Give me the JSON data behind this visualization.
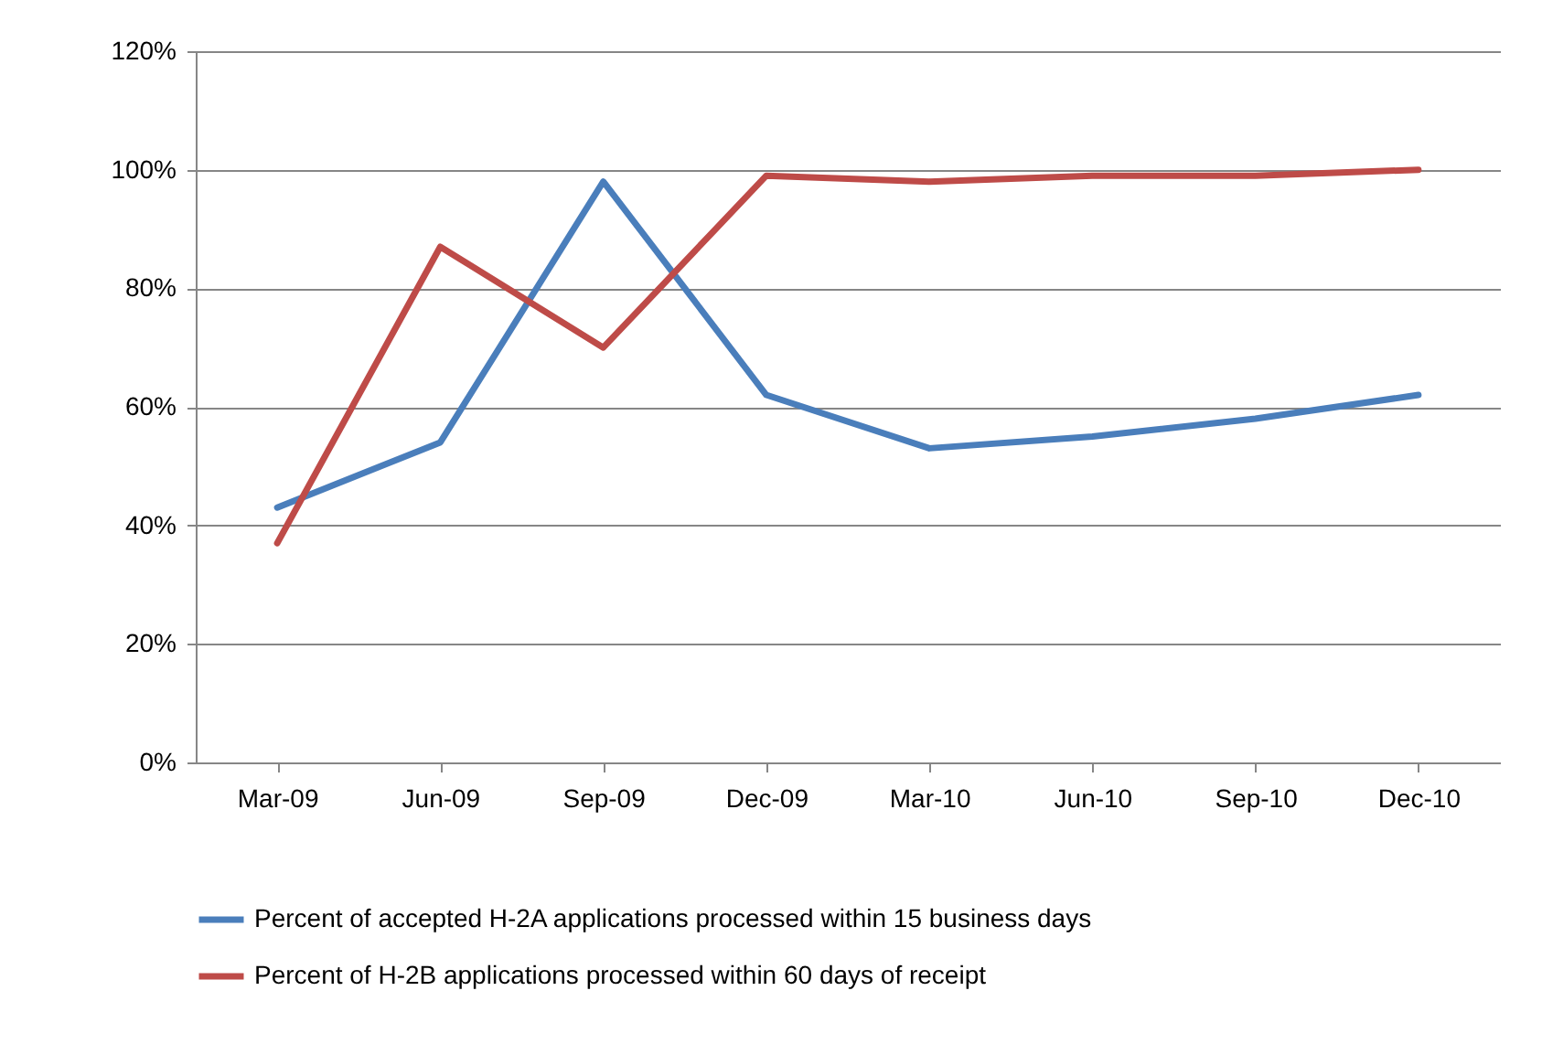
{
  "chart_data": {
    "type": "line",
    "categories": [
      "Mar-09",
      "Jun-09",
      "Sep-09",
      "Dec-09",
      "Mar-10",
      "Jun-10",
      "Sep-10",
      "Dec-10"
    ],
    "series": [
      {
        "name": "Percent of  accepted  H-2A applications  processed within 15 business days",
        "color": "#4a7ebb",
        "values": [
          43,
          54,
          98,
          62,
          53,
          55,
          58,
          62
        ]
      },
      {
        "name": "Percent of H-2B applications  processed within 60 days of receipt",
        "color": "#be4b48",
        "values": [
          37,
          87,
          70,
          99,
          98,
          99,
          99,
          100
        ]
      }
    ],
    "ylim": [
      0,
      120
    ],
    "yticks": [
      {
        "value": 0,
        "label": "0%"
      },
      {
        "value": 20,
        "label": "20%"
      },
      {
        "value": 40,
        "label": "40%"
      },
      {
        "value": 60,
        "label": "60%"
      },
      {
        "value": 80,
        "label": "80%"
      },
      {
        "value": 100,
        "label": "100%"
      },
      {
        "value": 120,
        "label": "120%"
      }
    ],
    "grid": "y",
    "legend": "bottom",
    "marker": "none",
    "line_style": "solid"
  }
}
